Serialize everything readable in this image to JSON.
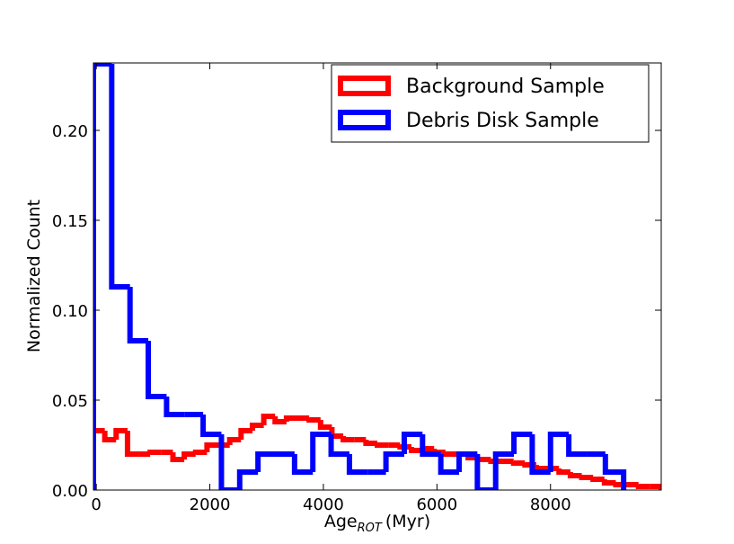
{
  "chart_data": {
    "type": "histogram",
    "ylabel": "Normalized Count",
    "xlabel": "Age",
    "xlabel_subscript": "ROT",
    "xlabel_suffix": "(Myr)",
    "xlim": [
      -50,
      9950
    ],
    "ylim": [
      0,
      0.2375
    ],
    "xticks": [
      0,
      2000,
      4000,
      6000,
      8000
    ],
    "yticks": [
      {
        "value": 0,
        "label": "0.00"
      },
      {
        "value": 0.05,
        "label": "0.05"
      },
      {
        "value": 0.1,
        "label": "0.10"
      },
      {
        "value": 0.15,
        "label": "0.15"
      },
      {
        "value": 0.2,
        "label": "0.20"
      }
    ],
    "legend": "upper right",
    "series": [
      {
        "name": "Background Sample",
        "color": "#ff0000",
        "bins": [
          -50,
          150,
          350,
          550,
          750,
          950,
          1150,
          1350,
          1550,
          1750,
          1950,
          2150,
          2350,
          2550,
          2750,
          2950,
          3150,
          3350,
          3550,
          3750,
          3950,
          4150,
          4350,
          4550,
          4750,
          4950,
          5150,
          5350,
          5550,
          5750,
          5950,
          6150,
          6350,
          6550,
          6750,
          6950,
          7150,
          7350,
          7550,
          7750,
          7950,
          8150,
          8350,
          8550,
          8750,
          8950,
          9150,
          9350,
          9550,
          9750,
          9950
        ],
        "values": [
          0.033,
          0.028,
          0.033,
          0.02,
          0.02,
          0.021,
          0.021,
          0.017,
          0.02,
          0.021,
          0.025,
          0.025,
          0.028,
          0.033,
          0.036,
          0.041,
          0.038,
          0.04,
          0.04,
          0.039,
          0.035,
          0.03,
          0.028,
          0.028,
          0.026,
          0.025,
          0.025,
          0.024,
          0.022,
          0.023,
          0.021,
          0.02,
          0.02,
          0.018,
          0.017,
          0.016,
          0.016,
          0.015,
          0.014,
          0.012,
          0.012,
          0.01,
          0.008,
          0.007,
          0.006,
          0.004,
          0.003,
          0.003,
          0.002,
          0.002
        ]
      },
      {
        "name": "Debris Disk Sample",
        "color": "#0000ff",
        "bins": [
          -50,
          272,
          594,
          916,
          1238,
          1560,
          1882,
          2204,
          2526,
          2848,
          3170,
          3492,
          3814,
          4136,
          4458,
          4780,
          5102,
          5424,
          5746,
          6068,
          6390,
          6712,
          7034,
          7356,
          7678,
          8000,
          8322,
          8644,
          8966,
          9288
        ],
        "values": [
          0.237,
          0.113,
          0.083,
          0.052,
          0.042,
          0.042,
          0.031,
          0,
          0.01,
          0.02,
          0.02,
          0.01,
          0.031,
          0.02,
          0.01,
          0.01,
          0.02,
          0.031,
          0.02,
          0.01,
          0.02,
          0,
          0.02,
          0.031,
          0.01,
          0.031,
          0.02,
          0.02,
          0.01
        ]
      }
    ]
  }
}
